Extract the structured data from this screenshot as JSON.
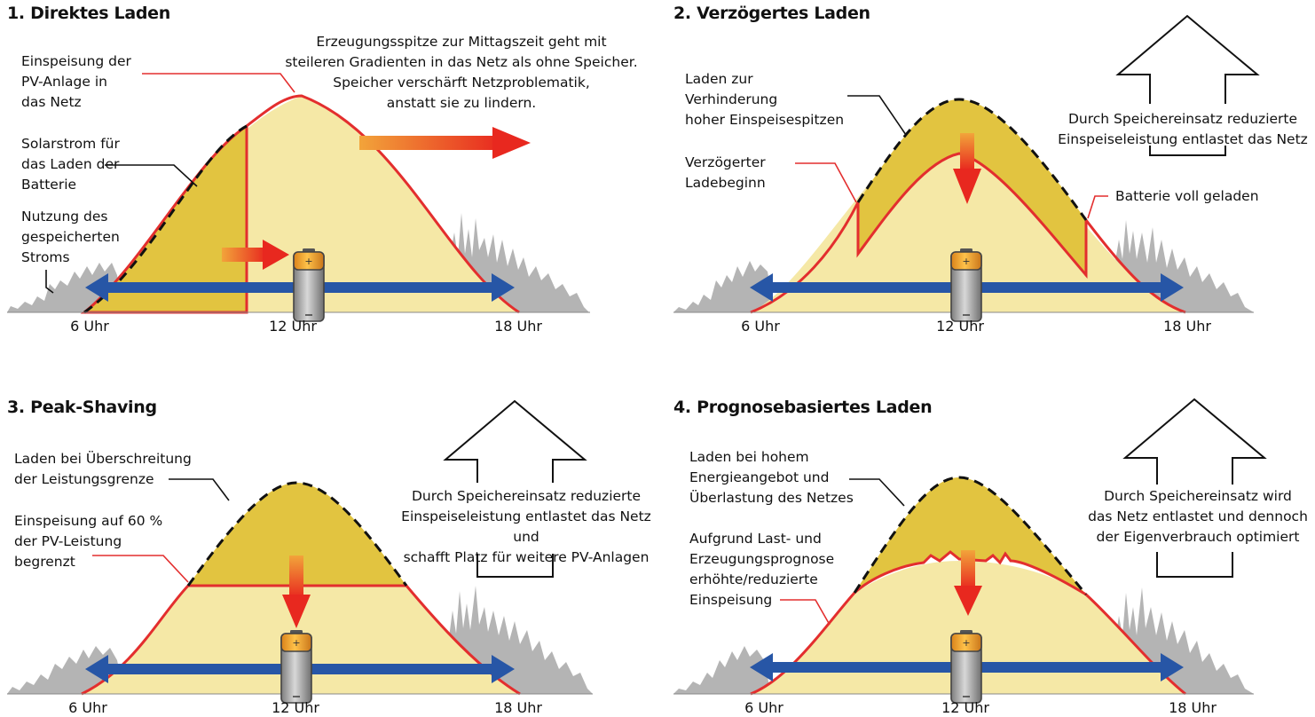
{
  "panels": [
    {
      "title": "1. Direktes Laden",
      "labels": {
        "feed": "Einspeisung der\nPV-Anlage in\ndas Netz",
        "solar": "Solarstrom für\ndas Laden der\nBatterie",
        "use": "Nutzung des\ngespeicherten\nStroms",
        "note": "Erzeugungsspitze zur Mittagszeit geht mit\nsteileren Gradienten in das Netz als ohne Speicher.\nSpeicher verschärft Netzproblematik,\nanstatt sie zu lindern."
      },
      "ticks": [
        "6 Uhr",
        "12 Uhr",
        "18 Uhr"
      ]
    },
    {
      "title": "2. Verzögertes Laden",
      "labels": {
        "a": "Laden zur\nVerhinderung\nhoher Einspeisespitzen",
        "b": "Verzögerter\nLadebeginn",
        "c": "Batterie voll geladen",
        "note": "Durch Speichereinsatz reduzierte\nEinspeiseleistung entlastet das Netz"
      },
      "ticks": [
        "6 Uhr",
        "12 Uhr",
        "18 Uhr"
      ]
    },
    {
      "title": "3. Peak-Shaving",
      "labels": {
        "a": "Laden bei Überschreitung\nder Leistungsgrenze",
        "b": "Einspeisung auf 60 %\nder PV-Leistung\nbegrenzt",
        "note": "Durch Speichereinsatz reduzierte\nEinspeiseleistung entlastet das Netz und\nschafft Platz für weitere PV-Anlagen"
      },
      "ticks": [
        "6 Uhr",
        "12 Uhr",
        "18 Uhr"
      ]
    },
    {
      "title": "4. Prognosebasiertes Laden",
      "labels": {
        "a": "Laden bei hohem\nEnergieangebot und\nÜberlastung des Netzes",
        "b": "Aufgrund Last- und\nErzeugungsprognose\nerhöhte/reduzierte\nEinspeisung",
        "note": "Durch Speichereinsatz wird\ndas Netz entlastet und dennoch\nder Eigenverbrauch optimiert"
      },
      "ticks": [
        "6 Uhr",
        "12 Uhr",
        "18 Uhr"
      ]
    }
  ],
  "colors": {
    "pv_fill": "#f5e8a6",
    "charge_fill": "#e2c440",
    "outline": "#e32e2e",
    "load": "#b4b4b4",
    "arrow_blue": "#2756a6",
    "arrow_red": "#e84a24",
    "arrow_orange": "#f2a43a"
  },
  "icons": [
    "battery-icon",
    "house-arrow-icon",
    "double-arrow-icon"
  ]
}
